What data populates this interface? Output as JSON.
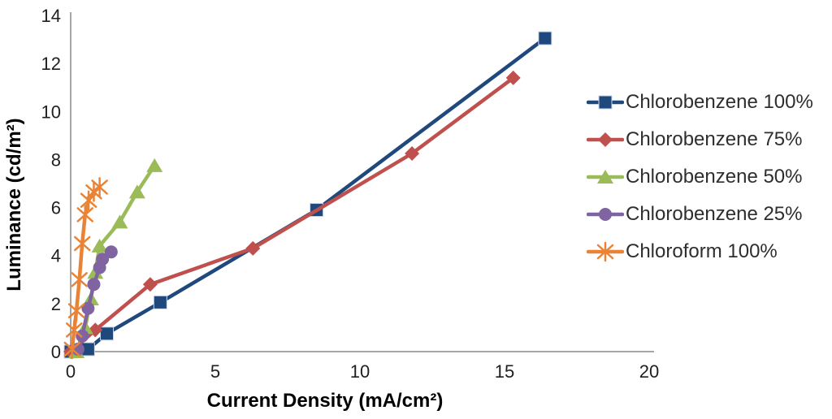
{
  "chart_data": {
    "type": "line",
    "title": "",
    "xlabel": "Current Density (mA/cm²)",
    "ylabel": "Luminance (cd/m²)",
    "xlim": [
      0,
      20
    ],
    "ylim": [
      0,
      14
    ],
    "x_ticks": [
      0,
      5,
      10,
      15,
      20
    ],
    "y_ticks": [
      0,
      2,
      4,
      6,
      8,
      10,
      12,
      14
    ],
    "grid": "off",
    "legend_position": "right",
    "axis_color": "#a6a6a6",
    "series": [
      {
        "name": "Chlorobenzene 100%",
        "color": "#1F497D",
        "marker": "square",
        "points": [
          [
            0,
            0
          ],
          [
            0.6,
            0.1
          ],
          [
            1.25,
            0.75
          ],
          [
            3.1,
            2.05
          ],
          [
            8.5,
            5.9
          ],
          [
            16.4,
            13.05
          ]
        ]
      },
      {
        "name": "Chlorobenzene 75%",
        "color": "#C0504D",
        "marker": "diamond",
        "points": [
          [
            0,
            0
          ],
          [
            0.85,
            0.9
          ],
          [
            2.75,
            2.8
          ],
          [
            6.3,
            4.3
          ],
          [
            11.8,
            8.25
          ],
          [
            15.3,
            11.4
          ]
        ]
      },
      {
        "name": "Chlorobenzene 50%",
        "color": "#9BBB59",
        "marker": "triangle",
        "points": [
          [
            0.2,
            0
          ],
          [
            0.5,
            1.0
          ],
          [
            0.7,
            2.2
          ],
          [
            0.85,
            3.3
          ],
          [
            1.0,
            4.4
          ],
          [
            1.7,
            5.4
          ],
          [
            2.3,
            6.65
          ],
          [
            2.9,
            7.75
          ]
        ]
      },
      {
        "name": "Chlorobenzene 25%",
        "color": "#8064A2",
        "marker": "circle",
        "points": [
          [
            0.25,
            0.1
          ],
          [
            0.4,
            0.65
          ],
          [
            0.6,
            1.8
          ],
          [
            0.8,
            2.8
          ],
          [
            1.0,
            3.5
          ],
          [
            1.1,
            3.85
          ],
          [
            1.4,
            4.15
          ]
        ]
      },
      {
        "name": "Chloroform 100%",
        "color": "#E98436",
        "marker": "asterisk",
        "points": [
          [
            0.05,
            0.1
          ],
          [
            0.12,
            0.9
          ],
          [
            0.2,
            1.7
          ],
          [
            0.3,
            3.0
          ],
          [
            0.4,
            4.5
          ],
          [
            0.5,
            5.7
          ],
          [
            0.62,
            6.3
          ],
          [
            0.8,
            6.65
          ],
          [
            1.0,
            6.85
          ]
        ]
      }
    ]
  }
}
